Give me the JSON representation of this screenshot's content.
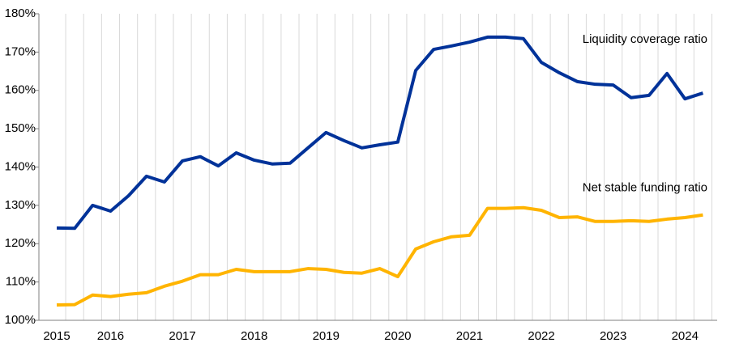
{
  "chart_data": {
    "type": "line",
    "categories": [
      "2015",
      null,
      null,
      "2016",
      null,
      null,
      null,
      "2017",
      null,
      null,
      null,
      "2018",
      null,
      null,
      null,
      "2019",
      null,
      null,
      null,
      "2020",
      null,
      null,
      null,
      "2021",
      null,
      null,
      null,
      "2022",
      null,
      null,
      null,
      "2023",
      null,
      null,
      null,
      "2024",
      null
    ],
    "series": [
      {
        "name": "Liquidity coverage ratio",
        "color": "#003299",
        "values": [
          124.1,
          124,
          130,
          128.5,
          132.5,
          137.6,
          136.1,
          141.6,
          142.7,
          140.3,
          143.7,
          141.8,
          140.8,
          141,
          145,
          149,
          146.9,
          145,
          145.8,
          146.5,
          165.2,
          170.7,
          171.6,
          172.6,
          173.9,
          173.9,
          173.5,
          167.3,
          164.6,
          162.3,
          161.6,
          161.4,
          158.1,
          158.7,
          164.4,
          157.8,
          159.3
        ]
      },
      {
        "name": "Net stable funding ratio",
        "color": "#ffb400",
        "values": [
          104,
          104.1,
          106.6,
          106.2,
          106.8,
          107.2,
          108.9,
          110.2,
          111.9,
          111.9,
          113.3,
          112.7,
          112.7,
          112.7,
          113.5,
          113.3,
          112.5,
          112.3,
          113.5,
          111.4,
          118.6,
          120.5,
          121.8,
          122.2,
          129.2,
          129.2,
          129.4,
          128.7,
          126.8,
          127,
          125.8,
          125.8,
          126,
          125.8,
          126.4,
          126.8,
          127.5
        ]
      }
    ],
    "ylim": [
      100,
      180
    ],
    "yticks": [
      {
        "value": 100,
        "label": "100%"
      },
      {
        "value": 110,
        "label": "110%"
      },
      {
        "value": 120,
        "label": "120%"
      },
      {
        "value": 130,
        "label": "130%"
      },
      {
        "value": 140,
        "label": "140%"
      },
      {
        "value": 150,
        "label": "150%"
      },
      {
        "value": 160,
        "label": "160%"
      },
      {
        "value": 170,
        "label": "170%"
      },
      {
        "value": 180,
        "label": "180%"
      }
    ],
    "grid": "x"
  }
}
